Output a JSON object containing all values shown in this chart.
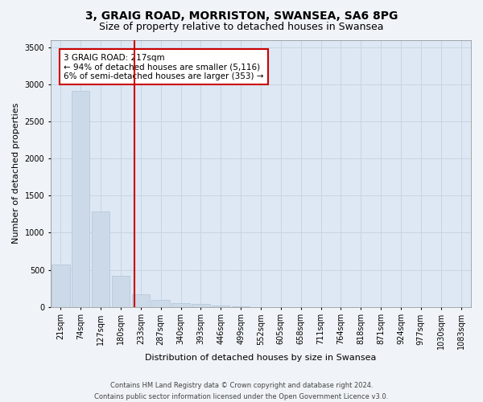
{
  "title": "3, GRAIG ROAD, MORRISTON, SWANSEA, SA6 8PG",
  "subtitle": "Size of property relative to detached houses in Swansea",
  "xlabel": "Distribution of detached houses by size in Swansea",
  "ylabel": "Number of detached properties",
  "categories": [
    "21sqm",
    "74sqm",
    "127sqm",
    "180sqm",
    "233sqm",
    "287sqm",
    "340sqm",
    "393sqm",
    "446sqm",
    "499sqm",
    "552sqm",
    "605sqm",
    "658sqm",
    "711sqm",
    "764sqm",
    "818sqm",
    "871sqm",
    "924sqm",
    "977sqm",
    "1030sqm",
    "1083sqm"
  ],
  "values": [
    575,
    2920,
    1290,
    420,
    165,
    90,
    50,
    35,
    18,
    8,
    0,
    0,
    0,
    0,
    0,
    0,
    0,
    0,
    0,
    0,
    0
  ],
  "bar_color": "#ccd9e8",
  "bar_edge_color": "#b0c4d8",
  "vline_color": "#cc0000",
  "vline_x": 3.698,
  "annotation_text": "3 GRAIG ROAD: 217sqm\n← 94% of detached houses are smaller (5,116)\n6% of semi-detached houses are larger (353) →",
  "annotation_box_color": "#ffffff",
  "annotation_box_edge_color": "#cc0000",
  "ylim": [
    0,
    3600
  ],
  "yticks": [
    0,
    500,
    1000,
    1500,
    2000,
    2500,
    3000,
    3500
  ],
  "grid_color": "#c8d4e4",
  "background_color": "#dde8f4",
  "fig_background_color": "#f0f4f8",
  "footer_line1": "Contains HM Land Registry data © Crown copyright and database right 2024.",
  "footer_line2": "Contains public sector information licensed under the Open Government Licence v3.0.",
  "title_fontsize": 10,
  "subtitle_fontsize": 9,
  "tick_fontsize": 7,
  "ylabel_fontsize": 8,
  "xlabel_fontsize": 8,
  "annotation_fontsize": 7.5,
  "footer_fontsize": 6
}
